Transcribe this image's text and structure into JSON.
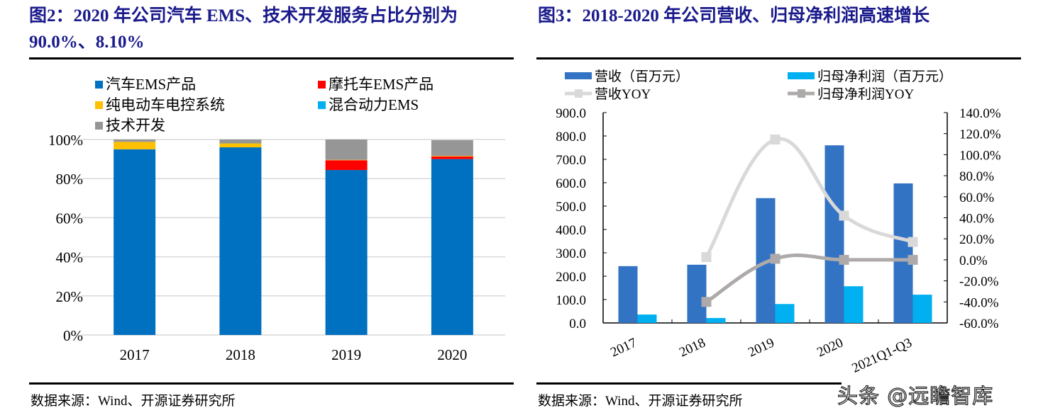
{
  "left": {
    "title": "图2：2020 年公司汽车 EMS、技术开发服务占比分别为 90.0%、8.10%",
    "source": "数据来源：Wind、开源证券研究所"
  },
  "right": {
    "title": "图3：2018-2020 年公司营收、归母净利润高速增长",
    "source": "数据来源：Wind、开源证券研究所"
  },
  "watermark": "头条 @远瞻智库",
  "chart_data": [
    {
      "type": "bar",
      "stacked": true,
      "title": "图2：2020 年公司汽车 EMS、技术开发服务占比分别为 90.0%、8.10%",
      "categories": [
        "2017",
        "2018",
        "2019",
        "2020"
      ],
      "series": [
        {
          "name": "汽车EMS产品",
          "color": "#0070C0",
          "values": [
            95.0,
            96.0,
            84.4,
            90.0
          ]
        },
        {
          "name": "摩托车EMS产品",
          "color": "#FF0000",
          "values": [
            0.0,
            0.0,
            5.0,
            1.3
          ]
        },
        {
          "name": "纯电动车电控系统",
          "color": "#FFC000",
          "values": [
            3.8,
            2.0,
            0.2,
            0.3
          ]
        },
        {
          "name": "混合动力EMS",
          "color": "#00B0F0",
          "values": [
            0.0,
            0.0,
            0.0,
            0.0
          ]
        },
        {
          "name": "技术开发",
          "color": "#969696",
          "values": [
            1.2,
            2.0,
            10.4,
            8.1
          ]
        }
      ],
      "yticks": [
        "0%",
        "20%",
        "40%",
        "60%",
        "80%",
        "100%"
      ],
      "ylim": [
        0,
        100
      ],
      "grid": true,
      "legend": "top"
    },
    {
      "type": "bar+line",
      "title": "图3：2018-2020 年公司营收、归母净利润高速增长",
      "categories": [
        "2017",
        "2018",
        "2019",
        "2020",
        "2021Q1-Q3"
      ],
      "series": [
        {
          "name": "营收（百万元）",
          "kind": "bar",
          "axis": "left",
          "color": "#3273C4",
          "values": [
            243,
            249,
            534,
            760,
            597
          ]
        },
        {
          "name": "归母净利润（百万元）",
          "kind": "bar",
          "axis": "left",
          "color": "#00B0F0",
          "values": [
            36,
            21,
            81,
            157,
            121
          ]
        },
        {
          "name": "营收YOY",
          "kind": "line",
          "axis": "right",
          "color": "#D9D9D9",
          "values": [
            null,
            2.6,
            114.4,
            42.0,
            17.0
          ]
        },
        {
          "name": "归母净利润YOY",
          "kind": "line",
          "axis": "right",
          "color": "#AEAAAA",
          "values": [
            null,
            -40.0,
            1.0,
            0.0,
            0.0
          ]
        }
      ],
      "left_axis": {
        "ylim": [
          0,
          900
        ],
        "ticks": [
          "0.0",
          "100.0",
          "200.0",
          "300.0",
          "400.0",
          "500.0",
          "600.0",
          "700.0",
          "800.0",
          "900.0"
        ]
      },
      "right_axis": {
        "ylim": [
          -60,
          140
        ],
        "ticks": [
          "-60.0%",
          "-40.0%",
          "-20.0%",
          "0.0%",
          "20.0%",
          "40.0%",
          "60.0%",
          "80.0%",
          "100.0%",
          "120.0%",
          "140.0%"
        ]
      },
      "grid": false,
      "legend": "top"
    }
  ]
}
